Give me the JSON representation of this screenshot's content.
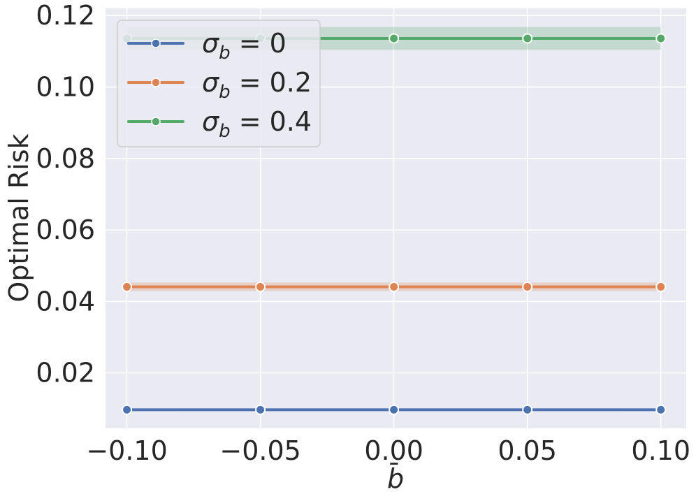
{
  "chart_data": {
    "type": "line",
    "xlabel": "b̄",
    "ylabel": "Optimal Risk",
    "x": [
      -0.1,
      -0.05,
      0.0,
      0.05,
      0.1
    ],
    "xticks": [
      "−0.10",
      "−0.05",
      "0.00",
      "0.05",
      "0.10"
    ],
    "yticks": [
      "0.02",
      "0.04",
      "0.06",
      "0.08",
      "0.10",
      "0.12"
    ],
    "ytick_values": [
      0.02,
      0.04,
      0.06,
      0.08,
      0.1,
      0.12
    ],
    "xlim": [
      -0.108,
      0.1095
    ],
    "ylim": [
      0.0045,
      0.122
    ],
    "grid": true,
    "legend_position": "top-left",
    "series": [
      {
        "name": "σ_b = 0",
        "legend_base": "σ",
        "legend_sub": "b",
        "legend_rest": " = 0",
        "color": "#4c72b0",
        "values": [
          0.0097,
          0.0097,
          0.0097,
          0.0097,
          0.0097
        ],
        "band": [
          0.0002,
          0.0002,
          0.0002,
          0.0002,
          0.0002
        ]
      },
      {
        "name": "σ_b = 0.2",
        "legend_base": "σ",
        "legend_sub": "b",
        "legend_rest": " = 0.2",
        "color": "#dd8452",
        "values": [
          0.0441,
          0.0441,
          0.0441,
          0.0441,
          0.0441
        ],
        "band": [
          0.0012,
          0.0012,
          0.0012,
          0.0012,
          0.0012
        ]
      },
      {
        "name": "σ_b = 0.4",
        "legend_base": "σ",
        "legend_sub": "b",
        "legend_rest": " = 0.4",
        "color": "#55a868",
        "values": [
          0.1136,
          0.1136,
          0.1136,
          0.1136,
          0.1136
        ],
        "band": [
          0.0032,
          0.0032,
          0.0032,
          0.0032,
          0.0032
        ]
      }
    ]
  }
}
